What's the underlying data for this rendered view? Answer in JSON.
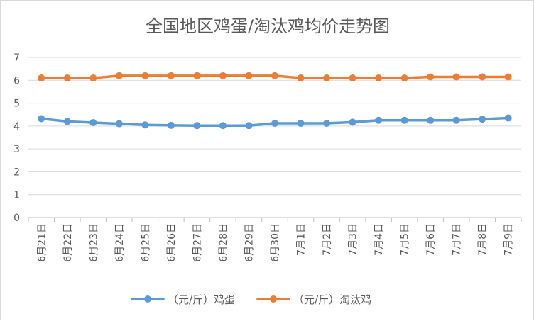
{
  "chart_data": {
    "type": "line",
    "title": "全国地区鸡蛋/淘汰鸡均价走势图",
    "categories": [
      "6月21日",
      "6月22日",
      "6月23日",
      "6月24日",
      "6月25日",
      "6月26日",
      "6月27日",
      "6月28日",
      "6月29日",
      "6月30日",
      "7月1日",
      "7月2日",
      "7月3日",
      "7月4日",
      "7月5日",
      "7月6日",
      "7月7日",
      "7月8日",
      "7月9日"
    ],
    "ylim": [
      0,
      7
    ],
    "yticks": [
      0,
      1,
      2,
      3,
      4,
      5,
      6,
      7
    ],
    "grid": true,
    "legend_position": "bottom",
    "series": [
      {
        "name": "（元/斤）鸡蛋",
        "color": "#5b9bd5",
        "values": [
          4.32,
          4.2,
          4.15,
          4.1,
          4.05,
          4.03,
          4.02,
          4.02,
          4.02,
          4.12,
          4.12,
          4.12,
          4.17,
          4.25,
          4.25,
          4.25,
          4.25,
          4.3,
          4.35
        ]
      },
      {
        "name": "（元/斤）淘汰鸡",
        "color": "#ed7d31",
        "values": [
          6.1,
          6.1,
          6.1,
          6.2,
          6.2,
          6.2,
          6.2,
          6.2,
          6.2,
          6.2,
          6.1,
          6.1,
          6.1,
          6.1,
          6.1,
          6.15,
          6.15,
          6.15,
          6.15
        ]
      }
    ]
  }
}
